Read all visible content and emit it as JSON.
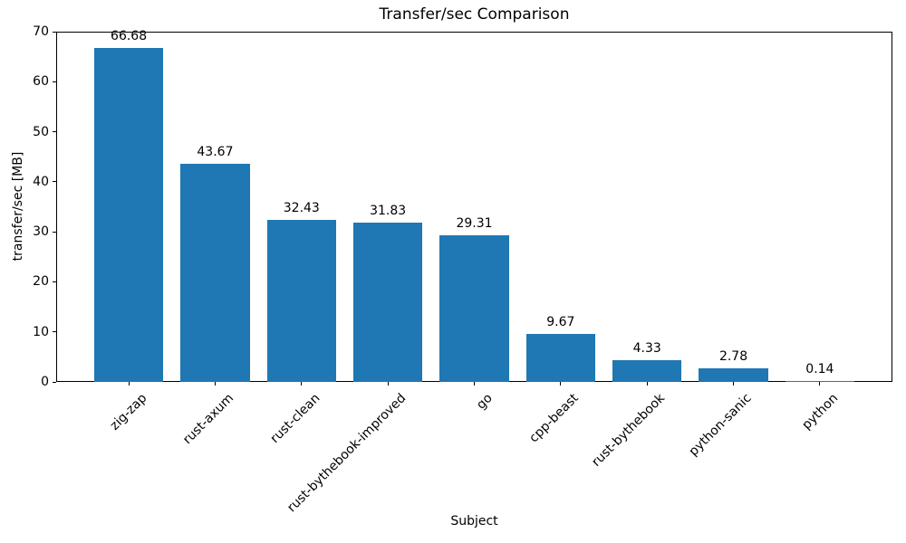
{
  "chart_data": {
    "type": "bar",
    "title": "Transfer/sec Comparison",
    "xlabel": "Subject",
    "ylabel": "transfer/sec [MB]",
    "categories": [
      "zig-zap",
      "rust-axum",
      "rust-clean",
      "rust-bythebook-improved",
      "go",
      "cpp-beast",
      "rust-bythebook",
      "python-sanic",
      "python"
    ],
    "values": [
      66.68,
      43.67,
      32.43,
      31.83,
      29.31,
      9.67,
      4.33,
      2.78,
      0.14
    ],
    "bar_labels": [
      "66.68",
      "43.67",
      "32.43",
      "31.83",
      "29.31",
      "9.67",
      "4.33",
      "2.78",
      "0.14"
    ],
    "yticks": [
      "0",
      "10",
      "20",
      "30",
      "40",
      "50",
      "60",
      "70"
    ],
    "ytick_values": [
      0,
      10,
      20,
      30,
      40,
      50,
      60,
      70
    ],
    "ylim": [
      0,
      70
    ],
    "bar_color": "#1f77b4",
    "text_color": "#000000",
    "xtick_rotation": 45,
    "grid": false,
    "legend_position": "none",
    "bar_width_fraction": 0.8
  }
}
